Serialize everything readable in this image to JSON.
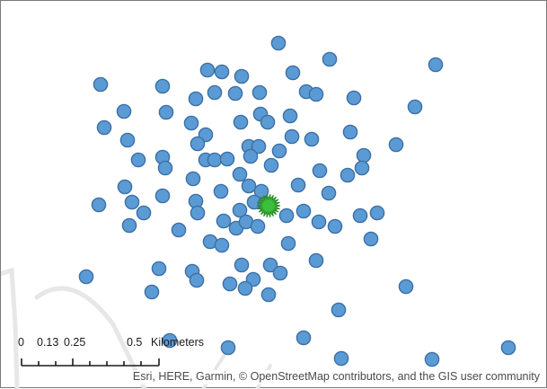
{
  "map": {
    "colors": {
      "background": "#ffffff",
      "road": "#e7e7e9",
      "road_edge": "#cfcfd4",
      "point_fill": "#5b9bd5",
      "point_stroke": "#3d6fa3",
      "highlight_fill": "#3cbf3c",
      "highlight_stroke": "#2a8a2a"
    },
    "point_count": 110,
    "highlight_feature": "green-starburst-icon"
  },
  "scale_bar": {
    "labels": [
      "0",
      "0.13",
      "0.25",
      "0.5"
    ],
    "unit": "Kilometers"
  },
  "attribution": "Esri, HERE, Garmin, © OpenStreetMap contributors, and the GIS user community"
}
